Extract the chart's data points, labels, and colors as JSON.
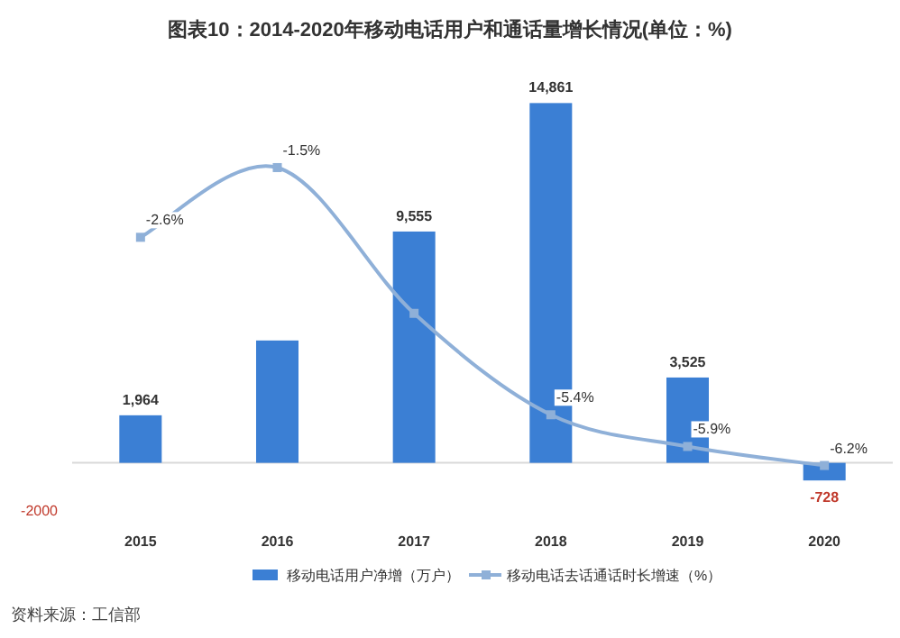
{
  "chart_data": {
    "type": "bar",
    "title": "图表10：2014-2020年移动电话用户和通话量增长情况(单位：%)",
    "categories": [
      "2015",
      "2016",
      "2017",
      "2018",
      "2019",
      "2020"
    ],
    "series": [
      {
        "name": "移动电话用户净增（万户）",
        "color": "#3b7fd4",
        "values": [
          1964,
          5054,
          9555,
          14861,
          3525,
          -728
        ],
        "value_labels": [
          "1,964",
          null,
          "9,555",
          "14,861",
          "3,525",
          "-728"
        ]
      },
      {
        "name": "移动电话去话通话时长增速（%）",
        "type": "line",
        "axis": "y2",
        "color": "#8fb0d8",
        "marker": "square",
        "values": [
          -2.6,
          -1.5,
          -3.8,
          -5.4,
          -5.9,
          -6.2
        ],
        "value_labels": [
          "-2.6%",
          "-1.5%",
          null,
          "-5.4%",
          "-5.9%",
          "-6.2%"
        ]
      }
    ],
    "legend": "bottom",
    "annotations": [
      "-2000",
      "资料来源：工信部"
    ]
  }
}
